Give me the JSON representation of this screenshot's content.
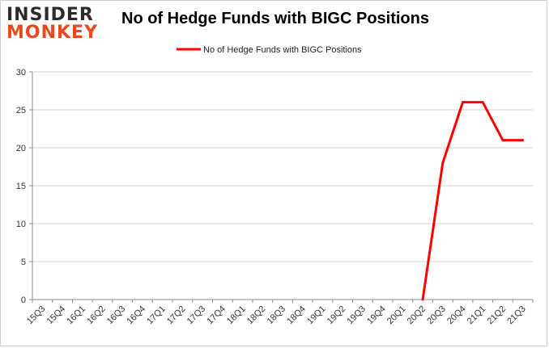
{
  "logo": {
    "line1": "INSIDER",
    "line2": "MONKEY"
  },
  "chart_data": {
    "type": "line",
    "title": "No of Hedge Funds with BIGC Positions",
    "xlabel": "",
    "ylabel": "",
    "categories": [
      "15Q3",
      "15Q4",
      "16Q1",
      "16Q2",
      "16Q3",
      "16Q4",
      "17Q1",
      "17Q2",
      "17Q3",
      "17Q4",
      "18Q1",
      "18Q2",
      "18Q3",
      "18Q4",
      "19Q1",
      "19Q2",
      "19Q3",
      "19Q4",
      "20Q1",
      "20Q2",
      "20Q3",
      "20Q4",
      "21Q1",
      "21Q2",
      "21Q3"
    ],
    "series": [
      {
        "name": "No of Hedge Funds with BIGC Positions",
        "values": [
          null,
          null,
          null,
          null,
          null,
          null,
          null,
          null,
          null,
          null,
          null,
          null,
          null,
          null,
          null,
          null,
          null,
          null,
          null,
          0,
          18,
          26,
          26,
          21,
          21
        ],
        "color": "#ff0000"
      }
    ],
    "ylim": [
      0,
      30
    ],
    "yticks": [
      0,
      5,
      10,
      15,
      20,
      25,
      30
    ],
    "grid": true,
    "legend_position": "top-center"
  }
}
